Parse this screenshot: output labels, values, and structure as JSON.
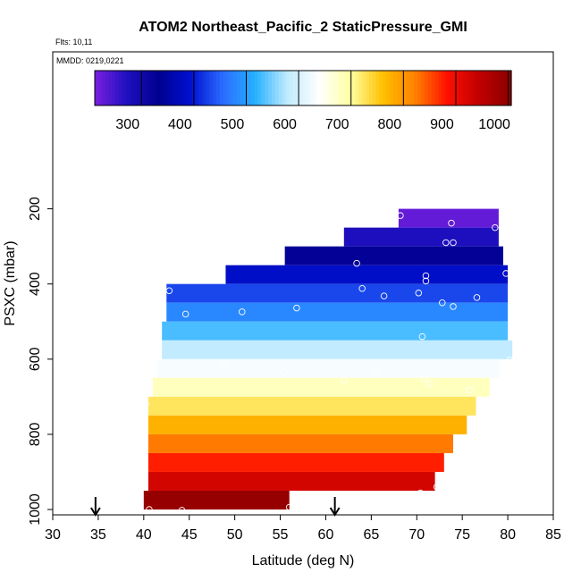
{
  "chart_data": {
    "type": "heatmap",
    "title": "ATOM2 Northeast_Pacific_2 StaticPressure_GMI",
    "flights_note": "Flts: 10,11",
    "date_note": "MMDD: 0219,0221",
    "xlabel": "Latitude (deg N)",
    "ylabel": "PSXC (mbar)",
    "xlim": [
      30,
      85
    ],
    "ylim": [
      1000,
      0
    ],
    "x_ticks": [
      30,
      35,
      40,
      45,
      50,
      55,
      60,
      65,
      70,
      75,
      80,
      85
    ],
    "y_ticks": [
      200,
      400,
      600,
      800,
      1000
    ],
    "colorbar": {
      "min": 210,
      "max": 1005,
      "ticks": [
        300,
        400,
        500,
        600,
        700,
        800,
        900,
        1000
      ],
      "colors": [
        "#7a1fe0",
        "#1f10c0",
        "#000090",
        "#0010d0",
        "#2b6cff",
        "#25b0ff",
        "#bfeaff",
        "#ffffff",
        "#ffffa0",
        "#ffc000",
        "#ff8000",
        "#ff1000",
        "#c00000",
        "#8a0000"
      ]
    },
    "bands": [
      {
        "p": 225,
        "lat0": 68.0,
        "lat1": 79.0,
        "value": 225
      },
      {
        "p": 275,
        "lat0": 62.0,
        "lat1": 79.0,
        "value": 275
      },
      {
        "p": 325,
        "lat0": 55.5,
        "lat1": 79.5,
        "value": 325
      },
      {
        "p": 375,
        "lat0": 49.0,
        "lat1": 80.0,
        "value": 385
      },
      {
        "p": 425,
        "lat0": 42.5,
        "lat1": 80.0,
        "value": 430
      },
      {
        "p": 475,
        "lat0": 42.5,
        "lat1": 80.0,
        "value": 480
      },
      {
        "p": 525,
        "lat0": 42.0,
        "lat1": 80.0,
        "value": 530
      },
      {
        "p": 575,
        "lat0": 42.0,
        "lat1": 80.5,
        "value": 580
      },
      {
        "p": 625,
        "lat0": 41.5,
        "lat1": 79.0,
        "value": 630
      },
      {
        "p": 675,
        "lat0": 41.0,
        "lat1": 78.0,
        "value": 680
      },
      {
        "p": 725,
        "lat0": 40.5,
        "lat1": 76.5,
        "value": 725
      },
      {
        "p": 775,
        "lat0": 40.5,
        "lat1": 75.5,
        "value": 775
      },
      {
        "p": 825,
        "lat0": 40.5,
        "lat1": 74.0,
        "value": 825
      },
      {
        "p": 875,
        "lat0": 40.5,
        "lat1": 73.0,
        "value": 875
      },
      {
        "p": 925,
        "lat0": 40.5,
        "lat1": 72.0,
        "value": 925
      },
      {
        "p": 975,
        "lat0": 40.0,
        "lat1": 56.0,
        "value": 990
      }
    ],
    "points": [
      [
        68.2,
        218
      ],
      [
        73.8,
        238
      ],
      [
        78.6,
        250
      ],
      [
        73.2,
        290
      ],
      [
        74.0,
        290
      ],
      [
        63.4,
        345
      ],
      [
        71.0,
        378
      ],
      [
        79.8,
        372
      ],
      [
        71.0,
        392
      ],
      [
        42.8,
        418
      ],
      [
        64.0,
        412
      ],
      [
        66.4,
        432
      ],
      [
        70.2,
        424
      ],
      [
        76.6,
        436
      ],
      [
        44.6,
        480
      ],
      [
        50.8,
        474
      ],
      [
        56.8,
        464
      ],
      [
        72.8,
        450
      ],
      [
        74.0,
        460
      ],
      [
        70.6,
        540
      ],
      [
        48.8,
        618
      ],
      [
        55.4,
        636
      ],
      [
        62.0,
        656
      ],
      [
        65.6,
        632
      ],
      [
        70.8,
        652
      ],
      [
        71.4,
        666
      ],
      [
        75.8,
        682
      ],
      [
        80.2,
        602
      ],
      [
        40.2,
        720
      ],
      [
        70.4,
        956
      ],
      [
        72.2,
        940
      ],
      [
        40.6,
        1000
      ],
      [
        44.2,
        1002
      ],
      [
        56.0,
        994
      ]
    ],
    "arrows_lat": [
      34.7,
      61.0
    ]
  }
}
